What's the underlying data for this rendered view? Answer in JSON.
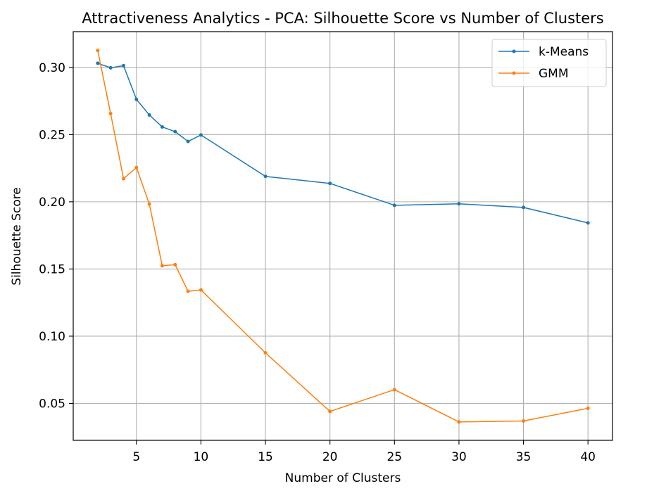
{
  "chart_data": {
    "type": "line",
    "title": "Attractiveness Analytics - PCA: Silhouette Score vs Number of Clusters",
    "xlabel": "Number of Clusters",
    "ylabel": "Silhouette Score",
    "x": [
      2,
      3,
      4,
      5,
      6,
      7,
      8,
      9,
      10,
      15,
      20,
      25,
      30,
      35,
      40
    ],
    "xlim": [
      0.1,
      41.9
    ],
    "ylim": [
      0.0225,
      0.3266
    ],
    "xticks": [
      5,
      10,
      15,
      20,
      25,
      30,
      35,
      40
    ],
    "xtick_labels": [
      "5",
      "10",
      "15",
      "20",
      "25",
      "30",
      "35",
      "40"
    ],
    "yticks": [
      0.05,
      0.1,
      0.15,
      0.2,
      0.25,
      0.3
    ],
    "ytick_labels": [
      "0.05",
      "0.10",
      "0.15",
      "0.20",
      "0.25",
      "0.30"
    ],
    "grid": true,
    "legend_position": "top-right",
    "series": [
      {
        "name": "k-Means",
        "color": "#1f77b4",
        "values": [
          0.3031,
          0.2997,
          0.3013,
          0.2762,
          0.2646,
          0.2557,
          0.2522,
          0.2449,
          0.2497,
          0.2189,
          0.2137,
          0.1974,
          0.1985,
          0.1958,
          0.1843
        ]
      },
      {
        "name": "GMM",
        "color": "#ff7f0e",
        "values": [
          0.3126,
          0.2656,
          0.2172,
          0.2255,
          0.1983,
          0.1524,
          0.1532,
          0.1334,
          0.1344,
          0.0876,
          0.044,
          0.0602,
          0.0362,
          0.0369,
          0.0463
        ]
      }
    ]
  }
}
